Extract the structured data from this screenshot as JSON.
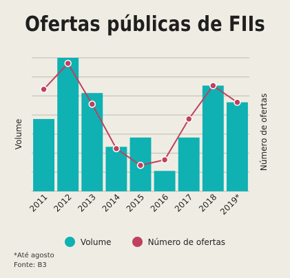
{
  "title": "Ofertas públicas de FIIs",
  "footnote": "*Até agosto",
  "source": "Fonte: B3",
  "colors": {
    "bar": "#0fb1b3",
    "line": "#c0405e",
    "grid": "#bdbbb0",
    "background": "#efede3"
  },
  "chart_data": {
    "type": "bar+line",
    "categories": [
      "2011",
      "2012",
      "2013",
      "2014",
      "2015",
      "2016",
      "2017",
      "2018",
      "2019*"
    ],
    "series": [
      {
        "name": "Volume",
        "type": "bar",
        "axis": "left",
        "values": [
          3.9,
          7.2,
          5.3,
          2.4,
          2.9,
          1.1,
          2.9,
          5.7,
          4.8
        ]
      },
      {
        "name": "Número de ofertas",
        "type": "line",
        "axis": "right",
        "values": [
          5.5,
          6.9,
          4.7,
          2.3,
          1.4,
          1.7,
          3.9,
          5.7,
          4.8
        ]
      }
    ],
    "ylabel_left": "Volume",
    "ylabel_right": "Número de ofertas",
    "ylim": [
      0,
      7.2
    ],
    "y_ticks_labeled": false,
    "grid": true,
    "legend_position": "bottom"
  }
}
